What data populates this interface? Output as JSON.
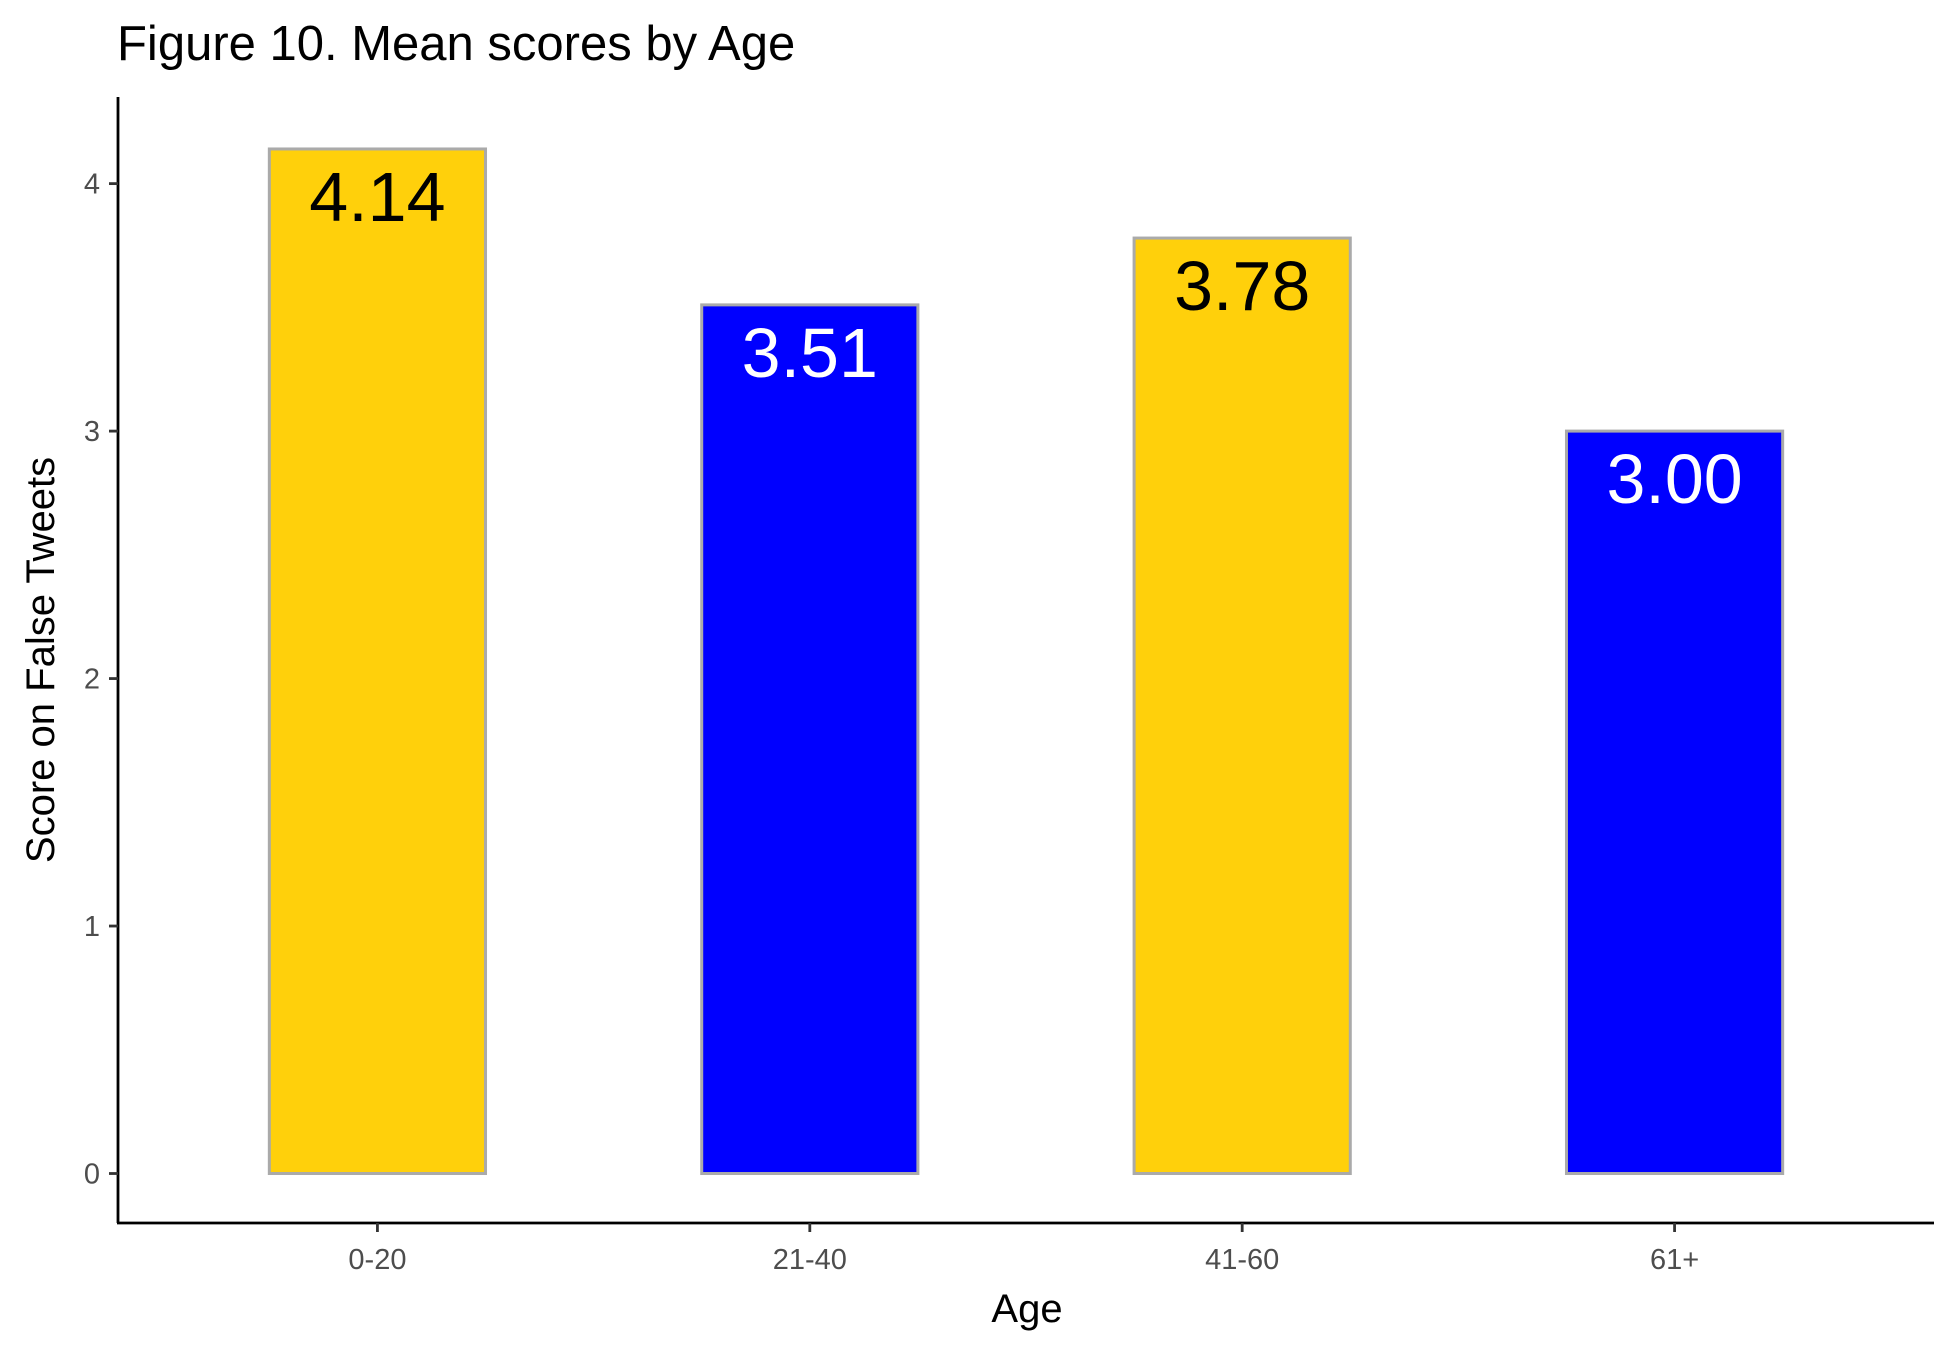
{
  "chart_data": {
    "type": "bar",
    "title": "Figure 10. Mean scores by Age",
    "xlabel": "Age",
    "ylabel": "Score on False Tweets",
    "categories": [
      "0-20",
      "21-40",
      "41-60",
      "61+"
    ],
    "values": [
      4.14,
      3.51,
      3.78,
      3.0
    ],
    "value_labels": [
      "4.14",
      "3.51",
      "3.78",
      "3.00"
    ],
    "bar_colors": [
      "#FFD00B",
      "#0000FF",
      "#FFD00B",
      "#0000FF"
    ],
    "label_colors": [
      "#000000",
      "#FFFFFF",
      "#000000",
      "#FFFFFF"
    ],
    "bar_outline_color": "#AAAAAA",
    "yticks": [
      0,
      1,
      2,
      3,
      4
    ],
    "ytick_labels": [
      "0",
      "1",
      "2",
      "3",
      "4"
    ],
    "ylim": [
      -0.2,
      4.35
    ],
    "grid": false,
    "legend": "none"
  }
}
